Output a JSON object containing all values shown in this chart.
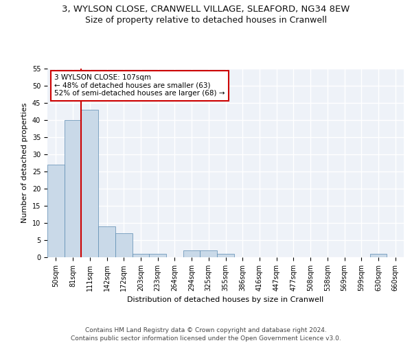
{
  "title_line1": "3, WYLSON CLOSE, CRANWELL VILLAGE, SLEAFORD, NG34 8EW",
  "title_line2": "Size of property relative to detached houses in Cranwell",
  "xlabel": "Distribution of detached houses by size in Cranwell",
  "ylabel": "Number of detached properties",
  "categories": [
    "50sqm",
    "81sqm",
    "111sqm",
    "142sqm",
    "172sqm",
    "203sqm",
    "233sqm",
    "264sqm",
    "294sqm",
    "325sqm",
    "355sqm",
    "386sqm",
    "416sqm",
    "447sqm",
    "477sqm",
    "508sqm",
    "538sqm",
    "569sqm",
    "599sqm",
    "630sqm",
    "660sqm"
  ],
  "values": [
    27,
    40,
    43,
    9,
    7,
    1,
    1,
    0,
    2,
    2,
    1,
    0,
    0,
    0,
    0,
    0,
    0,
    0,
    0,
    1,
    0
  ],
  "bar_color": "#c9d9e8",
  "bar_edge_color": "#5a8ab0",
  "vline_color": "#cc0000",
  "annotation_text": "3 WYLSON CLOSE: 107sqm\n← 48% of detached houses are smaller (63)\n52% of semi-detached houses are larger (68) →",
  "annotation_box_color": "#ffffff",
  "annotation_border_color": "#cc0000",
  "ylim": [
    0,
    55
  ],
  "yticks": [
    0,
    5,
    10,
    15,
    20,
    25,
    30,
    35,
    40,
    45,
    50,
    55
  ],
  "footer": "Contains HM Land Registry data © Crown copyright and database right 2024.\nContains public sector information licensed under the Open Government Licence v3.0.",
  "bg_color": "#eef2f8",
  "grid_color": "#ffffff",
  "title_fontsize": 9.5,
  "subtitle_fontsize": 9,
  "axis_label_fontsize": 8,
  "tick_fontsize": 7,
  "footer_fontsize": 6.5
}
